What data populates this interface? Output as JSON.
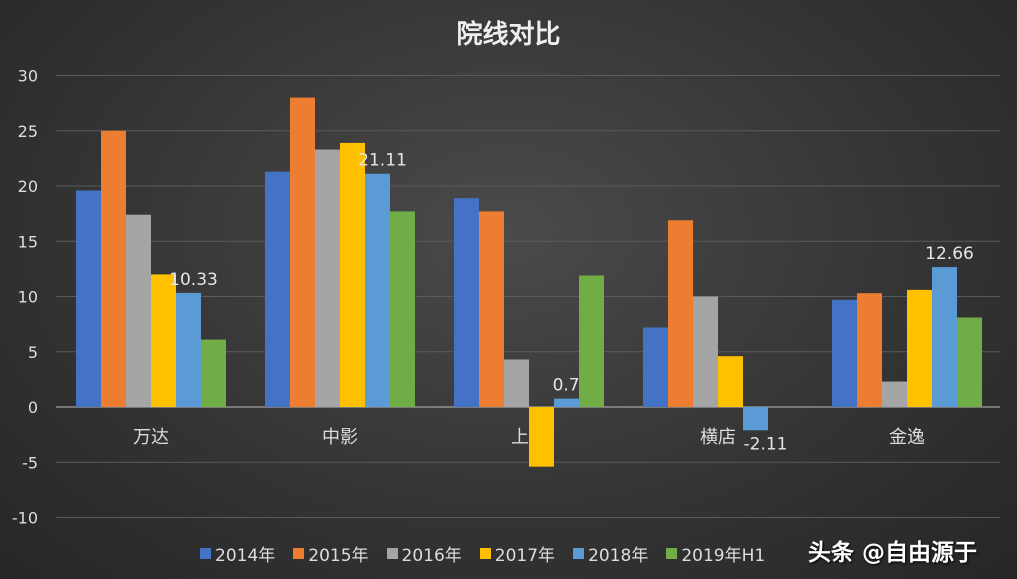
{
  "chart_data": {
    "type": "bar",
    "title": "院线对比",
    "categories": [
      "万达",
      "中影",
      "上影",
      "横店",
      "金逸"
    ],
    "series": [
      {
        "name": "2014年",
        "color": "#4472c4",
        "values": [
          19.6,
          21.3,
          18.9,
          7.2,
          9.7
        ]
      },
      {
        "name": "2015年",
        "color": "#ed7d31",
        "values": [
          25.0,
          28.0,
          17.7,
          16.9,
          10.3
        ]
      },
      {
        "name": "2016年",
        "color": "#a5a5a5",
        "values": [
          17.4,
          23.3,
          4.3,
          10.0,
          2.3
        ]
      },
      {
        "name": "2017年",
        "color": "#ffc000",
        "values": [
          12.0,
          23.9,
          -5.4,
          4.6,
          10.6
        ]
      },
      {
        "name": "2018年",
        "color": "#5b9bd5",
        "values": [
          10.33,
          21.11,
          0.76,
          -2.11,
          12.66
        ],
        "data_labels": [
          "10.33",
          "21.11",
          "0.76",
          "-2.11",
          "12.66"
        ]
      },
      {
        "name": "2019年H1",
        "color": "#70ad47",
        "values": [
          6.1,
          17.7,
          11.9,
          0,
          8.1
        ]
      }
    ],
    "ylim": [
      -10,
      30
    ],
    "yticks": [
      "-10",
      "-5",
      "0",
      "5",
      "10",
      "15",
      "20",
      "25",
      "30"
    ],
    "grid": true,
    "legend": "bottom"
  },
  "watermark": "头条 @自由源于"
}
